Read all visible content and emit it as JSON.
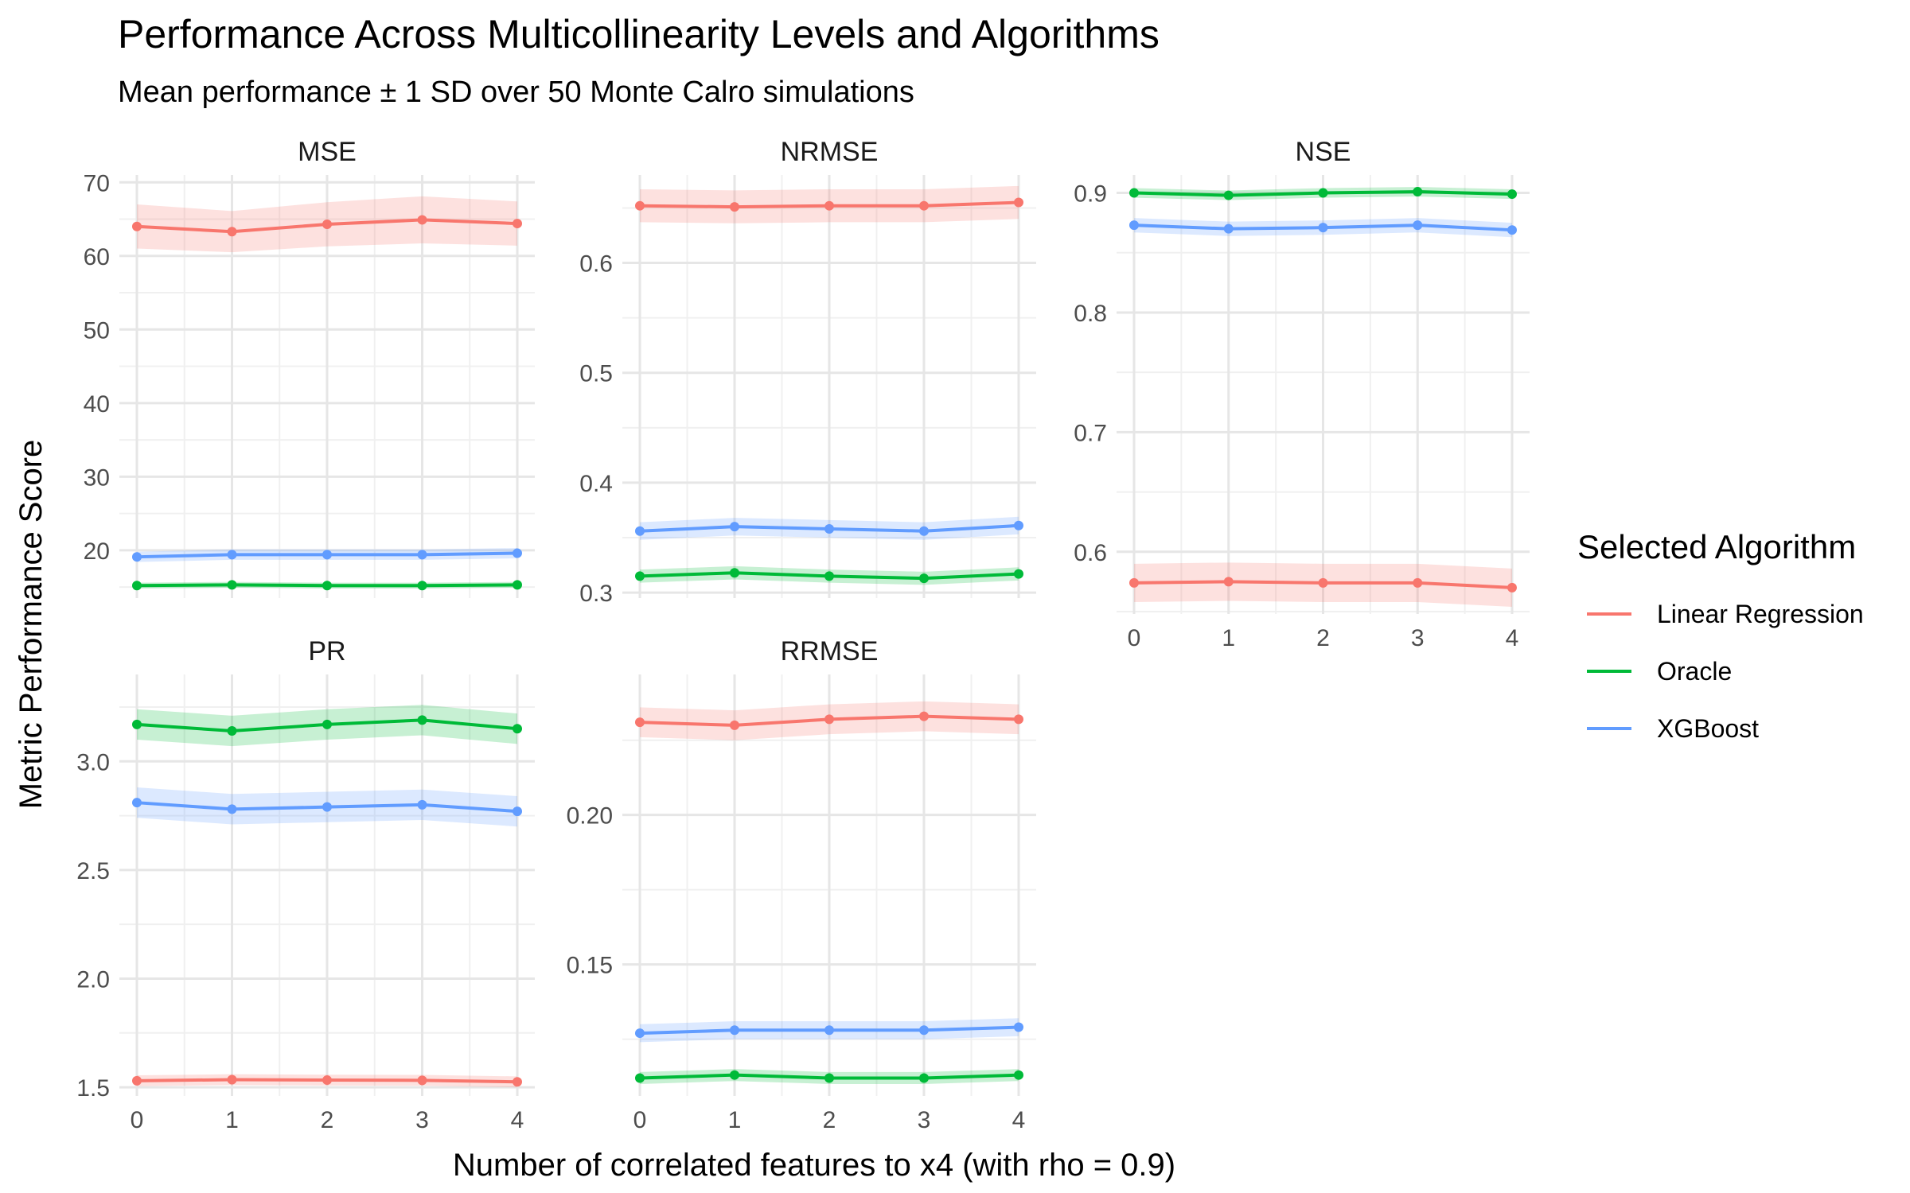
{
  "chart_data": {
    "type": "line",
    "title": "Performance Across Multicollinearity Levels and Algorithms",
    "subtitle": "Mean performance ± 1 SD over 50 Monte Calro simulations",
    "xlabel": "Number of correlated features to x4 (with rho = 0.9)",
    "ylabel": "Metric Performance Score",
    "x": [
      0,
      1,
      2,
      3,
      4
    ],
    "x_ticks": [
      "0",
      "1",
      "2",
      "3",
      "4"
    ],
    "grid": true,
    "legend": {
      "title": "Selected Algorithm",
      "placement": "right",
      "entries": [
        "Linear Regression",
        "Oracle",
        "XGBoost"
      ]
    },
    "colors": {
      "Linear Regression": "#F8766D",
      "Oracle": "#00BA38",
      "XGBoost": "#619CFF"
    },
    "panels": [
      {
        "title": "MSE",
        "ylim": [
          13.5,
          71
        ],
        "yticks": [
          20,
          30,
          40,
          50,
          60,
          70
        ],
        "ytick_labels": [
          "20",
          "30",
          "40",
          "50",
          "60",
          "70"
        ],
        "series": [
          {
            "name": "Linear Regression",
            "values": [
              64.0,
              63.3,
              64.3,
              64.9,
              64.4
            ],
            "sd": [
              3.0,
              2.8,
              3.0,
              3.2,
              3.0
            ]
          },
          {
            "name": "Oracle",
            "values": [
              15.2,
              15.3,
              15.2,
              15.2,
              15.3
            ],
            "sd": [
              0.4,
              0.4,
              0.4,
              0.4,
              0.4
            ]
          },
          {
            "name": "XGBoost",
            "values": [
              19.1,
              19.4,
              19.4,
              19.4,
              19.6
            ],
            "sd": [
              0.7,
              0.7,
              0.7,
              0.7,
              0.7
            ]
          }
        ]
      },
      {
        "title": "NRMSE",
        "ylim": [
          0.295,
          0.68
        ],
        "yticks": [
          0.3,
          0.4,
          0.5,
          0.6
        ],
        "ytick_labels": [
          "0.3",
          "0.4",
          "0.5",
          "0.6"
        ],
        "series": [
          {
            "name": "Linear Regression",
            "values": [
              0.652,
              0.651,
              0.652,
              0.652,
              0.655
            ],
            "sd": [
              0.015,
              0.015,
              0.015,
              0.015,
              0.015
            ]
          },
          {
            "name": "Oracle",
            "values": [
              0.315,
              0.318,
              0.315,
              0.313,
              0.317
            ],
            "sd": [
              0.006,
              0.006,
              0.006,
              0.006,
              0.006
            ]
          },
          {
            "name": "XGBoost",
            "values": [
              0.356,
              0.36,
              0.358,
              0.356,
              0.361
            ],
            "sd": [
              0.008,
              0.008,
              0.008,
              0.008,
              0.008
            ]
          }
        ]
      },
      {
        "title": "NSE",
        "ylim": [
          0.548,
          0.915
        ],
        "yticks": [
          0.6,
          0.7,
          0.8,
          0.9
        ],
        "ytick_labels": [
          "0.6",
          "0.7",
          "0.8",
          "0.9"
        ],
        "series": [
          {
            "name": "Linear Regression",
            "values": [
              0.574,
              0.575,
              0.574,
              0.574,
              0.57
            ],
            "sd": [
              0.016,
              0.016,
              0.016,
              0.016,
              0.016
            ]
          },
          {
            "name": "Oracle",
            "values": [
              0.9,
              0.898,
              0.9,
              0.901,
              0.899
            ],
            "sd": [
              0.004,
              0.004,
              0.004,
              0.004,
              0.004
            ]
          },
          {
            "name": "XGBoost",
            "values": [
              0.873,
              0.87,
              0.871,
              0.873,
              0.869
            ],
            "sd": [
              0.006,
              0.006,
              0.006,
              0.006,
              0.006
            ]
          }
        ]
      },
      {
        "title": "PR",
        "ylim": [
          1.46,
          3.4
        ],
        "yticks": [
          1.5,
          2.0,
          2.5,
          3.0
        ],
        "ytick_labels": [
          "1.5",
          "2.0",
          "2.5",
          "3.0"
        ],
        "series": [
          {
            "name": "Linear Regression",
            "values": [
              1.53,
              1.535,
              1.533,
              1.532,
              1.525
            ],
            "sd": [
              0.025,
              0.025,
              0.025,
              0.025,
              0.025
            ]
          },
          {
            "name": "Oracle",
            "values": [
              3.17,
              3.14,
              3.17,
              3.19,
              3.15
            ],
            "sd": [
              0.07,
              0.07,
              0.07,
              0.07,
              0.07
            ]
          },
          {
            "name": "XGBoost",
            "values": [
              2.81,
              2.78,
              2.79,
              2.8,
              2.77
            ],
            "sd": [
              0.07,
              0.07,
              0.07,
              0.07,
              0.07
            ]
          }
        ]
      },
      {
        "title": "RRMSE",
        "ylim": [
          0.106,
          0.247
        ],
        "yticks": [
          0.15,
          0.2
        ],
        "ytick_labels": [
          "0.15",
          "0.20"
        ],
        "series": [
          {
            "name": "Linear Regression",
            "values": [
              0.231,
              0.23,
              0.232,
              0.233,
              0.232
            ],
            "sd": [
              0.005,
              0.005,
              0.005,
              0.005,
              0.005
            ]
          },
          {
            "name": "Oracle",
            "values": [
              0.112,
              0.113,
              0.112,
              0.112,
              0.113
            ],
            "sd": [
              0.002,
              0.002,
              0.002,
              0.002,
              0.002
            ]
          },
          {
            "name": "XGBoost",
            "values": [
              0.127,
              0.128,
              0.128,
              0.128,
              0.129
            ],
            "sd": [
              0.003,
              0.003,
              0.003,
              0.003,
              0.003
            ]
          }
        ]
      }
    ]
  }
}
